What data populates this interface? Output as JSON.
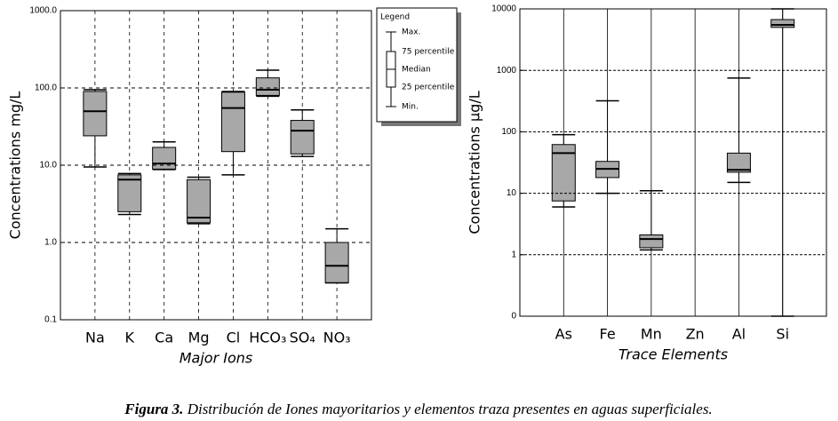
{
  "chart_data": [
    {
      "type": "box",
      "log": true,
      "grid": true,
      "color": "#a8a8a8",
      "ylabel": "Concentrations mg/L",
      "xlabel": "Major Ions",
      "categories": [
        "Na",
        "K",
        "Ca",
        "Mg",
        "Cl",
        "HCO₃",
        "SO₄",
        "NO₃"
      ],
      "boxes": [
        {
          "min": 9.5,
          "q1": 24,
          "median": 50,
          "q3": 90,
          "max": 95
        },
        {
          "min": 2.3,
          "q1": 2.5,
          "median": 6.5,
          "q3": 7.5,
          "max": 7.8
        },
        {
          "min": 8.8,
          "q1": 8.9,
          "median": 10.5,
          "q3": 17,
          "max": 20
        },
        {
          "min": 1.75,
          "q1": 1.8,
          "median": 2.1,
          "q3": 6.5,
          "max": 7
        },
        {
          "min": 7.5,
          "q1": 15,
          "median": 55,
          "q3": 88,
          "max": 90
        },
        {
          "min": 78,
          "q1": 80,
          "median": 95,
          "q3": 135,
          "max": 170
        },
        {
          "min": 13,
          "q1": 14,
          "median": 28,
          "q3": 38,
          "max": 52
        },
        {
          "min": 0.3,
          "q1": 0.3,
          "median": 0.5,
          "q3": 1.0,
          "max": 1.5
        }
      ],
      "ylim": [
        0.1,
        1000
      ],
      "yticks": [
        {
          "value": 0.1,
          "label": "0.1"
        },
        {
          "value": 1,
          "label": "1.0"
        },
        {
          "value": 10,
          "label": "10.0"
        },
        {
          "value": 100,
          "label": "100.0"
        },
        {
          "value": 1000,
          "label": "1000.0"
        }
      ],
      "legend": {
        "title": "Legend",
        "max": "Max.",
        "q3": "75 percentile",
        "median": "Median",
        "q1": "25 percentile",
        "min": "Min."
      }
    },
    {
      "type": "box",
      "log": true,
      "grid": true,
      "color": "#a8a8a8",
      "ylabel": "Concentrations µg/L",
      "xlabel": "Trace Elements",
      "categories": [
        "As",
        "Fe",
        "Mn",
        "Zn",
        "Al",
        "Si"
      ],
      "boxes": [
        {
          "min": 6,
          "q1": 7.5,
          "median": 45,
          "q3": 62,
          "max": 90
        },
        {
          "min": 10,
          "q1": 18,
          "median": 25,
          "q3": 33,
          "max": 320
        },
        {
          "min": 1.2,
          "q1": 1.3,
          "median": 1.8,
          "q3": 2.1,
          "max": 11
        },
        null,
        {
          "min": 15,
          "q1": 22,
          "median": 24,
          "q3": 45,
          "max": 750
        },
        {
          "min": 0.1,
          "q1": 5000,
          "median": 5500,
          "q3": 6700,
          "max": 10000
        }
      ],
      "ylim": [
        0.1,
        10000
      ],
      "yticks": [
        {
          "value": 0.1,
          "label": "0"
        },
        1,
        10,
        100,
        1000,
        10000
      ]
    }
  ],
  "caption": {
    "label": "Figura 3.",
    "text": "Distribución de Iones mayoritarios y elementos traza presentes en aguas superficiales."
  }
}
